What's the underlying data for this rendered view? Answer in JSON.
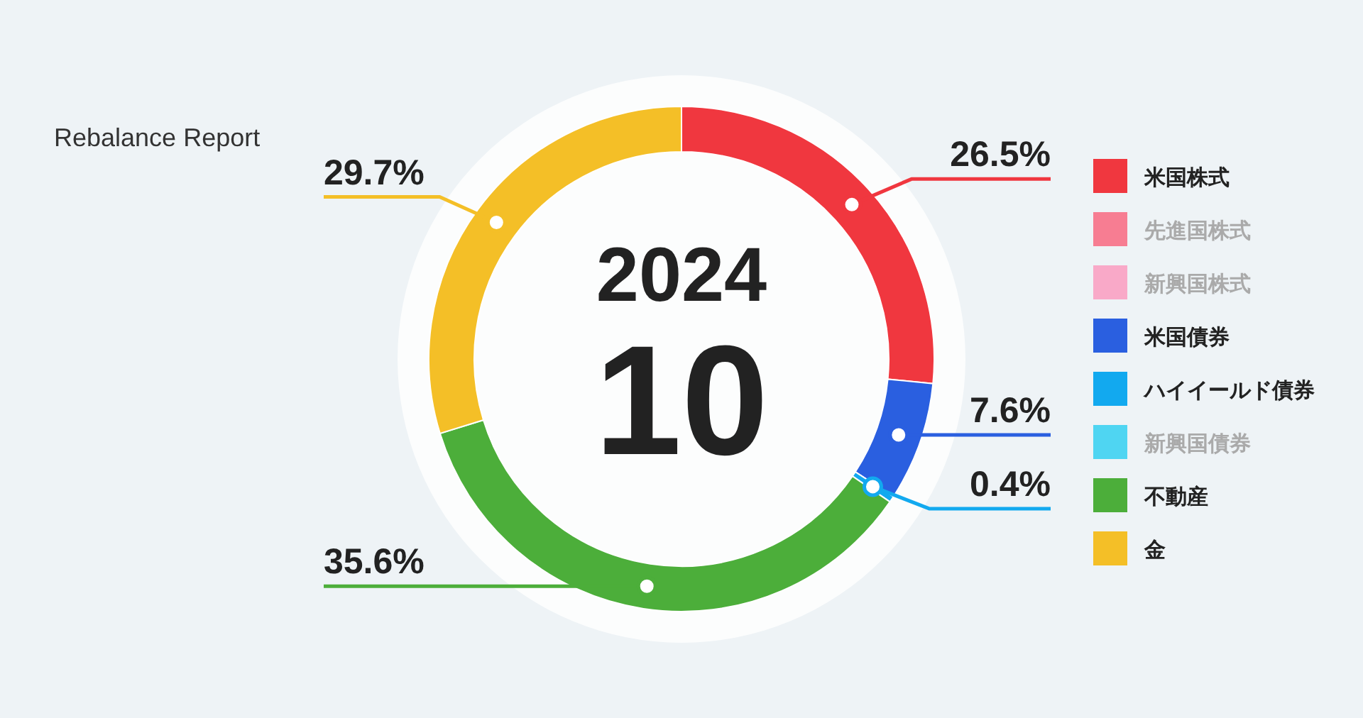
{
  "chart_data": {
    "type": "donut",
    "title": "Rebalance Report",
    "annotations": [
      "2024",
      "10"
    ],
    "categories": [
      "米国株式",
      "先進国株式",
      "新興国株式",
      "米国債券",
      "ハイイールド債券",
      "新興国債券",
      "不動産",
      "金"
    ],
    "values": [
      26.5,
      0,
      0,
      7.6,
      0.4,
      0,
      35.6,
      29.7
    ],
    "colors": [
      "#f0373f",
      "#f77d92",
      "#f9a9c8",
      "#2a5fe0",
      "#12a9ef",
      "#4fd5f2",
      "#4cae3a",
      "#f4bf27"
    ],
    "value_labels": [
      "26.5%",
      null,
      null,
      "7.6%",
      "0.4%",
      null,
      "35.6%",
      "29.7%"
    ],
    "legend": "right"
  }
}
